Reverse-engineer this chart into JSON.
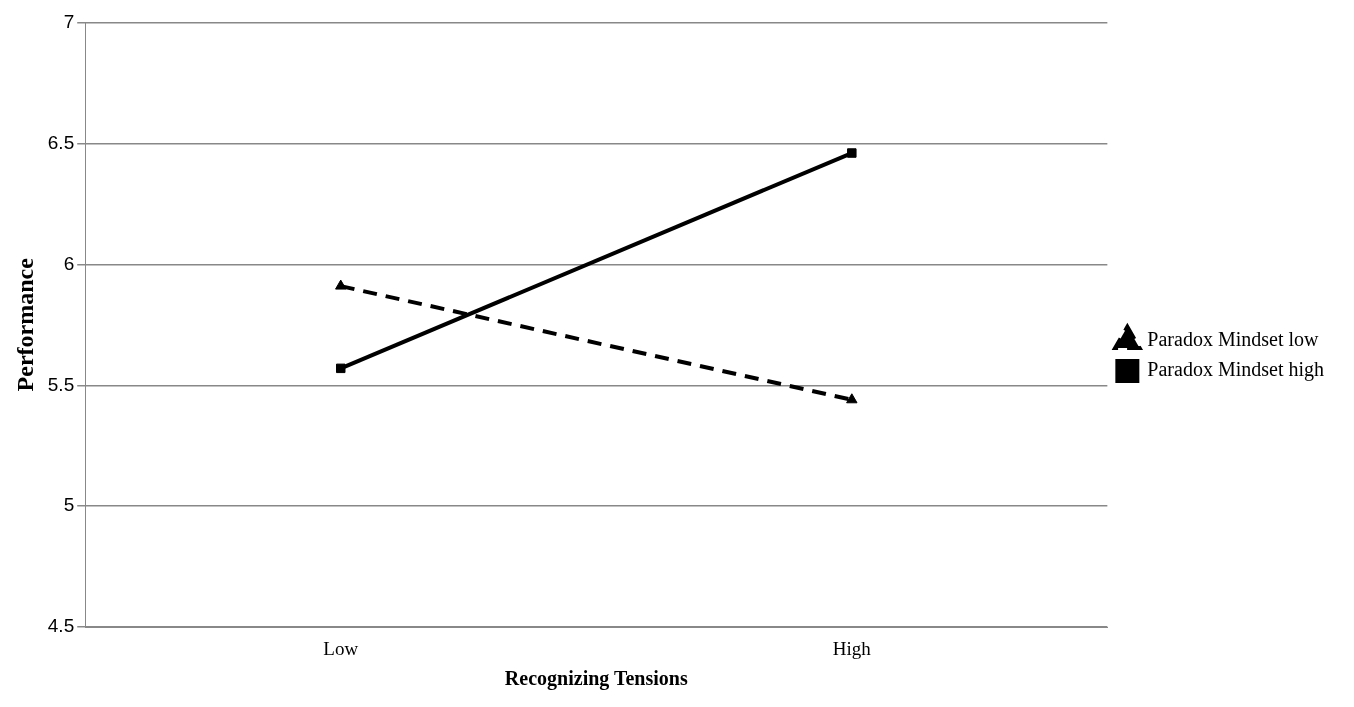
{
  "chart_data": {
    "type": "line",
    "xlabel": "Recognizing Tensions",
    "ylabel": "Performance",
    "categories": [
      "Low",
      "High"
    ],
    "series": [
      {
        "name": "Paradox Mindset low",
        "color": "#000000",
        "values": [
          5.91,
          5.44
        ],
        "marker": "triangle",
        "line_style": "dashed"
      },
      {
        "name": "Paradox Mindset high",
        "color": "#000000",
        "values": [
          5.57,
          6.46
        ],
        "marker": "square",
        "line_style": "solid"
      }
    ],
    "ylim": [
      4.5,
      7
    ],
    "yticks": [
      4.5,
      5,
      5.5,
      6,
      6.5,
      7
    ],
    "grid": "y",
    "legend": "right"
  }
}
